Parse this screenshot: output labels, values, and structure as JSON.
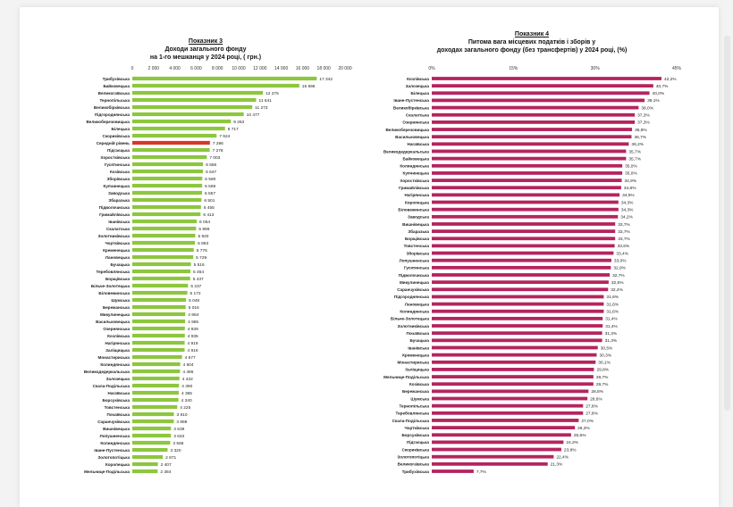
{
  "charts": {
    "left": {
      "heading": "Показник 3",
      "subtitle_line1": "Доходи загального фонду",
      "subtitle_line2": "на 1-го мешканця у 2024 році, ( грн.)"
    },
    "right": {
      "heading": "Показник 4",
      "subtitle_line1": "Питома вага місцевих податків і зборів у",
      "subtitle_line2": "доходах загального фонду (без трансфертів) у 2024 році, (%)"
    }
  },
  "colors": {
    "left_bar": "#8dc63f",
    "left_highlight": "#d9362b",
    "right_bar": "#b5245f"
  },
  "chart_data": [
    {
      "type": "bar",
      "orientation": "horizontal",
      "title": "Показник 3 Доходи загального фонду на 1-го мешканця у 2024 році, ( грн.)",
      "xlim": [
        0,
        20000
      ],
      "xticks": [
        "0",
        "2 000",
        "4 000",
        "6 000",
        "8 000",
        "10 000",
        "12 000",
        "14 000",
        "16 000",
        "18 000",
        "20 000"
      ],
      "categories": [
        "Трибухівська",
        "Байковецька",
        "Великогаївська",
        "Тернопільська",
        "Великобірківська",
        "Підгороднянська",
        "Великоберезовицька",
        "Білецька",
        "Скориківська",
        "Середній рівень",
        "Підгаєцька",
        "Хоростківська",
        "Гусятинська",
        "Козівська",
        "Зборівська",
        "Купчинецька",
        "Заводська",
        "Збаразька",
        "Підволочиська",
        "Гримайлівська",
        "Іванівська",
        "Скалатська",
        "Золотниківська",
        "Чортківська",
        "Кременецька",
        "Лановецька",
        "Бучацька",
        "Теребовлянська",
        "Борщівська",
        "Більче-Золотецька",
        "Біловежинська",
        "Шумська",
        "Бережанська",
        "Микулинецька",
        "Васильковецька",
        "Озернянська",
        "Козлівська",
        "Нагірянська",
        "Заліщицька",
        "Монастириська",
        "Колиндянська",
        "Великодедеркальська",
        "Залозецька",
        "Скала-Подільська",
        "Наraївська",
        "Борсуківська",
        "Товстенська",
        "Почаївська",
        "Саранчуківська",
        "Вишнівецька",
        "Лопушненська",
        "Колиндянська",
        "Іване-Пустенська",
        "Золотопотіцька",
        "Коропецька",
        "Мельнице-Подільська"
      ],
      "values": [
        17342,
        15696,
        12275,
        11641,
        11273,
        10477,
        9263,
        8717,
        7924,
        7296,
        7278,
        7003,
        6656,
        6647,
        6580,
        6569,
        6557,
        6501,
        6455,
        6413,
        6054,
        5999,
        5920,
        5893,
        5776,
        5729,
        5516,
        5464,
        5437,
        5237,
        5172,
        5048,
        5016,
        4984,
        4965,
        4939,
        4935,
        4919,
        4916,
        4677,
        4504,
        4486,
        4432,
        4390,
        4365,
        4340,
        4225,
        3910,
        3898,
        3639,
        3633,
        3566,
        3320,
        2871,
        2407,
        2384
      ],
      "value_labels": [
        "17 342",
        "15 696",
        "12 275",
        "11 641",
        "11 273",
        "10 477",
        "9 263",
        "8 717",
        "7 924",
        "7 296",
        "7 278",
        "7 003",
        "6 656",
        "6 647",
        "6 580",
        "6 569",
        "6 557",
        "6 501",
        "6 455",
        "6 413",
        "6 054",
        "5 999",
        "5 920",
        "5 893",
        "5 776",
        "5 729",
        "5 516",
        "5 464",
        "5 437",
        "5 237",
        "5 172",
        "5 048",
        "5 016",
        "4 984",
        "4 965",
        "4 939",
        "4 935",
        "4 919",
        "4 916",
        "4 677",
        "4 504",
        "4 486",
        "4 432",
        "4 390",
        "4 365",
        "4 340",
        "4 225",
        "3 910",
        "3 898",
        "3 639",
        "3 633",
        "3 566",
        "3 320",
        "2 871",
        "2 407",
        "2 384"
      ],
      "highlight_category": "Середній рівень"
    },
    {
      "type": "bar",
      "orientation": "horizontal",
      "title": "Показник 4 Питома вага місцевих податків і зборів у доходах загального фонду (без трансфертів) у 2024 році, (%)",
      "xlim": [
        0,
        45
      ],
      "xticks": [
        "0%",
        "15%",
        "30%",
        "45%"
      ],
      "categories": [
        "Козлівська",
        "Залозецька",
        "Білецька",
        "Іване-Пустенська",
        "Великобірківська",
        "Скалатська",
        "Озернянська",
        "Великоберезовицька",
        "Васильковецька",
        "Наraївська",
        "Великодедеркальська",
        "Байковецька",
        "Колиндянська",
        "Купчинецька",
        "Хоростківська",
        "Гримайлівська",
        "Нагірянська",
        "Коропецька",
        "Біловежинська",
        "Заводська",
        "Вишнівецька",
        "Збаразька",
        "Борщівська",
        "Товстенська",
        "Зборівська",
        "Лопушненська",
        "Гусятинська",
        "Підволочиська",
        "Микулинецька",
        "Саранчуківська",
        "Підгороднянська",
        "Лановецька",
        "Колиндянська",
        "Більче-Золотецька",
        "Золотниківська",
        "Почаївська",
        "Бучацька",
        "Іванівська",
        "Кременецька",
        "Монастириська",
        "Заліщицька",
        "Мельнице-Подільська",
        "Козівська",
        "Бережанська",
        "Шумська",
        "Тернопільська",
        "Теребовлянська",
        "Скала-Подільська",
        "Чортківська",
        "Борсуківська",
        "Підгаєцька",
        "Скориківська",
        "Золотопотіцька",
        "Великогаївська",
        "Трибухівська"
      ],
      "values": [
        42.2,
        40.7,
        40.0,
        39.1,
        38.0,
        37.3,
        37.3,
        36.8,
        36.7,
        36.2,
        35.7,
        35.7,
        35.0,
        35.0,
        34.9,
        34.8,
        34.5,
        34.3,
        34.3,
        34.2,
        33.7,
        33.7,
        33.7,
        33.6,
        33.4,
        33.0,
        32.9,
        32.7,
        32.5,
        32.4,
        31.6,
        31.6,
        31.6,
        31.4,
        31.4,
        31.3,
        31.3,
        30.5,
        30.3,
        30.1,
        29.8,
        29.7,
        29.7,
        28.8,
        28.6,
        27.8,
        27.8,
        27.0,
        26.3,
        25.6,
        24.2,
        23.8,
        22.4,
        21.3,
        7.7
      ],
      "value_labels": [
        "42,2%",
        "40,7%",
        "40,0%",
        "39,1%",
        "38,0%",
        "37,3%",
        "37,3%",
        "36,8%",
        "36,7%",
        "36,2%",
        "35,7%",
        "35,7%",
        "35,0%",
        "35,0%",
        "34,9%",
        "34,8%",
        "34,5%",
        "34,3%",
        "34,3%",
        "34,2%",
        "33,7%",
        "33,7%",
        "33,7%",
        "33,6%",
        "33,4%",
        "33,0%",
        "32,9%",
        "32,7%",
        "32,5%",
        "32,4%",
        "31,6%",
        "31,6%",
        "31,6%",
        "31,4%",
        "31,4%",
        "31,3%",
        "31,3%",
        "30,5%",
        "30,3%",
        "30,1%",
        "29,8%",
        "29,7%",
        "29,7%",
        "28,8%",
        "28,6%",
        "27,8%",
        "27,8%",
        "27,0%",
        "26,3%",
        "25,6%",
        "24,2%",
        "23,8%",
        "22,4%",
        "21,3%",
        "7,7%"
      ]
    }
  ]
}
